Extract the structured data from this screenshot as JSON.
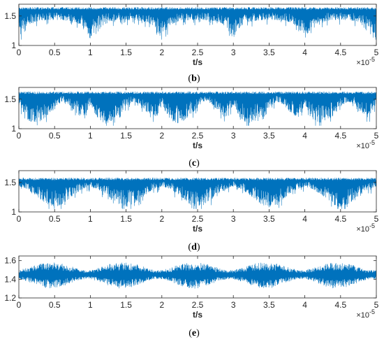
{
  "colors": {
    "line": "#0072BD",
    "axis": "#262626",
    "background": "#ffffff"
  },
  "chart_data": [
    {
      "type": "line",
      "panel": "b",
      "caption_left": "(",
      "caption_letter": "b",
      "caption_right": ")",
      "xlabel": "t/s",
      "x_exponent_base": "×10",
      "x_exponent_power": "-5",
      "xlim": [
        0,
        5
      ],
      "ylim": [
        1,
        1.7
      ],
      "x_ticks": [
        0,
        0.5,
        1,
        1.5,
        2,
        2.5,
        3,
        3.5,
        4,
        4.5,
        5
      ],
      "x_tick_labels": [
        "0",
        "0.5",
        "1",
        "1.5",
        "2",
        "2.5",
        "3",
        "3.5",
        "4",
        "4.5",
        "5"
      ],
      "y_ticks": [
        1,
        1.5
      ],
      "y_tick_labels": [
        "1",
        "1.5"
      ],
      "signal": {
        "upper_envelope": 1.65,
        "min_level": 1.1,
        "period": 1.0,
        "x": [
          0,
          0.1,
          0.2,
          0.3,
          0.4,
          0.5,
          0.6,
          0.7,
          0.8,
          0.9,
          1.0
        ],
        "lower_envelope": [
          1.08,
          1.3,
          1.38,
          1.4,
          1.42,
          1.42,
          1.42,
          1.4,
          1.38,
          1.3,
          1.08
        ]
      }
    },
    {
      "type": "line",
      "panel": "c",
      "caption_left": "(",
      "caption_letter": "c",
      "caption_right": ")",
      "xlabel": "t/s",
      "x_exponent_base": "×10",
      "x_exponent_power": "-5",
      "xlim": [
        0,
        5
      ],
      "ylim": [
        1,
        1.7
      ],
      "x_ticks": [
        0,
        0.5,
        1,
        1.5,
        2,
        2.5,
        3,
        3.5,
        4,
        4.5,
        5
      ],
      "x_tick_labels": [
        "0",
        "0.5",
        "1",
        "1.5",
        "2",
        "2.5",
        "3",
        "3.5",
        "4",
        "4.5",
        "5"
      ],
      "y_ticks": [
        1,
        1.5
      ],
      "y_tick_labels": [
        "1",
        "1.5"
      ],
      "signal": {
        "upper_envelope": 1.63,
        "min_level": 1.05,
        "period": 1.0,
        "x": [
          0,
          0.1,
          0.2,
          0.3,
          0.4,
          0.5,
          0.6,
          0.7,
          0.8,
          0.9,
          1.0
        ],
        "lower_envelope": [
          1.4,
          1.15,
          1.05,
          1.1,
          1.2,
          1.35,
          1.45,
          1.4,
          1.25,
          1.15,
          1.4
        ]
      }
    },
    {
      "type": "line",
      "panel": "d",
      "caption_left": "(",
      "caption_letter": "d",
      "caption_right": ")",
      "xlabel": "t/s",
      "x_exponent_base": "×10",
      "x_exponent_power": "-5",
      "xlim": [
        0,
        5
      ],
      "ylim": [
        1,
        1.7
      ],
      "x_ticks": [
        0,
        0.5,
        1,
        1.5,
        2,
        2.5,
        3,
        3.5,
        4,
        4.5,
        5
      ],
      "x_tick_labels": [
        "0",
        "0.5",
        "1",
        "1.5",
        "2",
        "2.5",
        "3",
        "3.5",
        "4",
        "4.5",
        "5"
      ],
      "y_ticks": [
        1,
        1.5
      ],
      "y_tick_labels": [
        "1",
        "1.5"
      ],
      "signal": {
        "upper_envelope": 1.58,
        "min_level": 1.05,
        "period": 1.0,
        "x": [
          0,
          0.1,
          0.2,
          0.3,
          0.4,
          0.5,
          0.6,
          0.7,
          0.8,
          0.9,
          1.0
        ],
        "lower_envelope": [
          1.42,
          1.38,
          1.3,
          1.2,
          1.1,
          1.05,
          1.1,
          1.2,
          1.3,
          1.38,
          1.42
        ]
      }
    },
    {
      "type": "line",
      "panel": "e",
      "caption_left": "(",
      "caption_letter": "e",
      "caption_right": ")",
      "xlabel": "t/s",
      "x_exponent_base": "×10",
      "x_exponent_power": "-5",
      "xlim": [
        0,
        5
      ],
      "ylim": [
        1.2,
        1.65
      ],
      "x_ticks": [
        0,
        0.5,
        1,
        1.5,
        2,
        2.5,
        3,
        3.5,
        4,
        4.5,
        5
      ],
      "x_tick_labels": [
        "0",
        "0.5",
        "1",
        "1.5",
        "2",
        "2.5",
        "3",
        "3.5",
        "4",
        "4.5",
        "5"
      ],
      "y_ticks": [
        1.2,
        1.4,
        1.6
      ],
      "y_tick_labels": [
        "1.2",
        "1.4",
        "1.6"
      ],
      "signal": {
        "center": 1.45,
        "period": 1.0,
        "x": [
          0,
          0.1,
          0.2,
          0.3,
          0.4,
          0.5,
          0.6,
          0.7,
          0.8,
          0.9,
          1.0
        ],
        "upper_envelope": [
          1.5,
          1.52,
          1.55,
          1.57,
          1.58,
          1.58,
          1.57,
          1.55,
          1.52,
          1.5,
          1.5
        ],
        "lower_envelope": [
          1.4,
          1.38,
          1.35,
          1.32,
          1.3,
          1.3,
          1.32,
          1.35,
          1.38,
          1.4,
          1.4
        ]
      }
    }
  ]
}
